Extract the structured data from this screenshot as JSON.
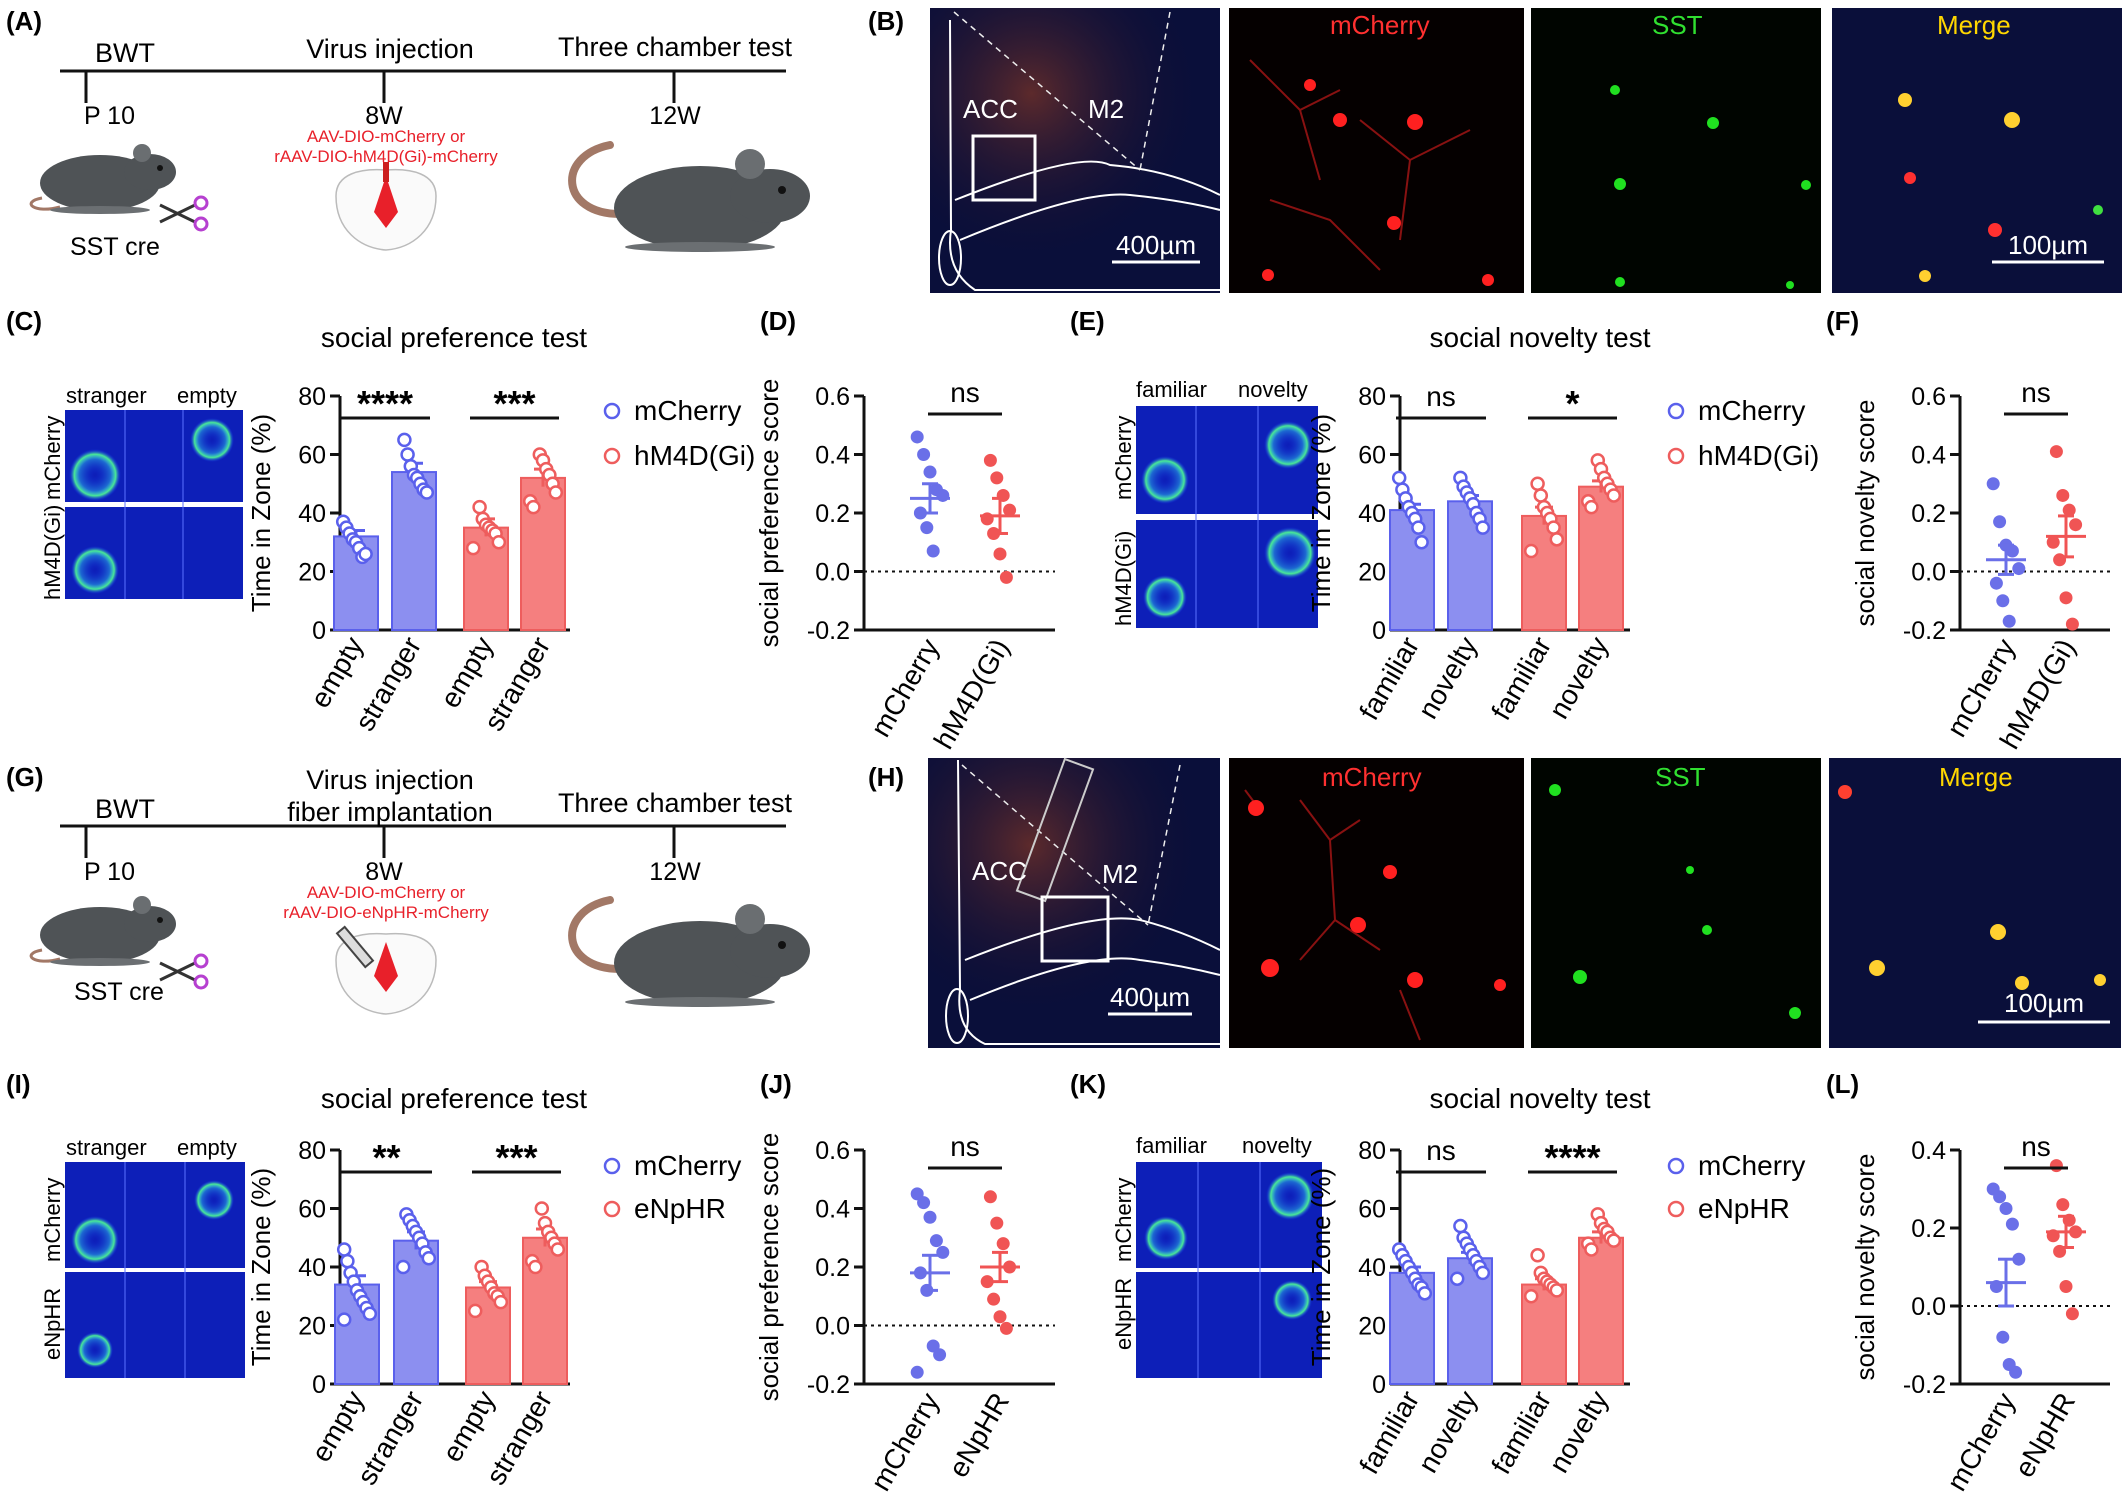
{
  "colors": {
    "blue_fill": "#8c8ff0",
    "blue": "#5a60ec",
    "blue_point": "#6a6fe8",
    "red_fill": "#f57f7f",
    "red": "#ee5d5d",
    "red_point": "#f05454",
    "virus_red": "#e8202a",
    "mouse": "#4f5356",
    "tail": "#a27866"
  },
  "panels": {
    "A": "(A)",
    "B": "(B)",
    "C": "(C)",
    "D": "(D)",
    "E": "(E)",
    "F": "(F)",
    "G": "(G)",
    "H": "(H)",
    "I": "(I)",
    "J": "(J)",
    "K": "(K)",
    "L": "(L)"
  },
  "timeline_top": {
    "bwt": "BWT",
    "p10": "P 10",
    "stage2": "Virus injection",
    "w8": "8W",
    "stage3": "Three chamber test",
    "w12": "12W",
    "virus_line1": "AAV-DIO-mCherry or",
    "virus_line2": "rAAV-DIO-hM4D(Gi)-mCherry",
    "mouse_label": "SST cre"
  },
  "timeline_bottom": {
    "bwt": "BWT",
    "p10": "P 10",
    "stage2_line1": "Virus injection",
    "stage2_line2": "fiber implantation",
    "w8": "8W",
    "stage3": "Three chamber test",
    "w12": "12W",
    "virus_line1": "AAV-DIO-mCherry or",
    "virus_line2": "rAAV-DIO-eNpHR-mCherry",
    "mouse_label": "SST cre"
  },
  "micrographs_top": {
    "acc": "ACC",
    "m2": "M2",
    "scale1": "400µm",
    "ch1": "mCherry",
    "ch2": "SST",
    "ch3": "Merge",
    "scale2": "100µm"
  },
  "micrographs_bottom": {
    "acc": "ACC",
    "m2": "M2",
    "scale1": "400µm",
    "ch1": "mCherry",
    "ch2": "SST",
    "ch3": "Merge",
    "scale2": "100µm"
  },
  "heatmaps": {
    "C": {
      "left": "stranger",
      "right": "empty",
      "row1": "mCherry",
      "row2": "hM4D(Gi)"
    },
    "E": {
      "left": "familiar",
      "right": "novelty",
      "row1": "mCherry",
      "row2": "hM4D(Gi)"
    },
    "I": {
      "left": "stranger",
      "right": "empty",
      "row1": "mCherry",
      "row2": "eNpHR"
    },
    "K": {
      "left": "familiar",
      "right": "novelty",
      "row1": "mCherry",
      "row2": "eNpHR"
    }
  },
  "chart_data": [
    {
      "panel": "C",
      "type": "bar",
      "title": "social preference test",
      "ylabel": "Time in Zone (%)",
      "ylim": [
        0,
        80
      ],
      "yticks": [
        0,
        20,
        40,
        60,
        80
      ],
      "categories": [
        "empty",
        "stranger",
        "empty",
        "stranger"
      ],
      "groups": [
        "mCherry",
        "mCherry",
        "hM4D(Gi)",
        "hM4D(Gi)"
      ],
      "values": [
        32,
        54,
        35,
        52
      ],
      "sem": [
        2,
        3,
        3,
        3
      ],
      "points": [
        [
          37,
          35,
          33,
          31,
          30,
          28,
          25,
          26
        ],
        [
          65,
          60,
          56,
          53,
          52,
          50,
          48,
          47
        ],
        [
          42,
          38,
          36,
          35,
          34,
          33,
          30,
          28
        ],
        [
          60,
          58,
          55,
          53,
          50,
          47,
          44,
          42
        ]
      ],
      "legend": [
        "mCherry",
        "hM4D(Gi)"
      ],
      "significance": [
        {
          "label": "****"
        },
        {
          "label": "***"
        }
      ]
    },
    {
      "panel": "D",
      "type": "scatter",
      "ylabel": "social preference score",
      "ylim": [
        -0.2,
        0.6
      ],
      "yticks": [
        "-0.2",
        "0.0",
        "0.2",
        "0.4",
        "0.6"
      ],
      "categories": [
        "mCherry",
        "hM4D(Gi)"
      ],
      "means": [
        0.25,
        0.19
      ],
      "sem": [
        0.05,
        0.06
      ],
      "points": [
        [
          0.46,
          0.4,
          0.34,
          0.28,
          0.26,
          0.2,
          0.15,
          0.07
        ],
        [
          0.38,
          0.32,
          0.26,
          0.21,
          0.18,
          0.13,
          0.06,
          -0.02
        ]
      ],
      "significance": [
        {
          "label": "ns"
        }
      ]
    },
    {
      "panel": "E",
      "type": "bar",
      "title": "social novelty test",
      "ylabel": "Time in Zone (%)",
      "ylim": [
        0,
        80
      ],
      "yticks": [
        0,
        20,
        40,
        60,
        80
      ],
      "categories": [
        "familiar",
        "novelty",
        "familiar",
        "novelty"
      ],
      "groups": [
        "mCherry",
        "mCherry",
        "hM4D(Gi)",
        "hM4D(Gi)"
      ],
      "values": [
        41,
        44,
        39,
        49
      ],
      "sem": [
        2,
        2,
        3,
        2
      ],
      "points": [
        [
          52,
          48,
          45,
          42,
          40,
          38,
          35,
          30
        ],
        [
          52,
          49,
          47,
          45,
          43,
          40,
          38,
          35
        ],
        [
          50,
          46,
          42,
          40,
          38,
          35,
          31,
          27
        ],
        [
          58,
          55,
          52,
          50,
          48,
          46,
          44,
          42
        ]
      ],
      "legend": [
        "mCherry",
        "hM4D(Gi)"
      ],
      "significance": [
        {
          "label": "ns"
        },
        {
          "label": "*"
        }
      ]
    },
    {
      "panel": "F",
      "type": "scatter",
      "ylabel": "social novelty score",
      "ylim": [
        -0.2,
        0.6
      ],
      "yticks": [
        "-0.2",
        "0.0",
        "0.2",
        "0.4",
        "0.6"
      ],
      "categories": [
        "mCherry",
        "hM4D(Gi)"
      ],
      "means": [
        0.04,
        0.12
      ],
      "sem": [
        0.05,
        0.07
      ],
      "points": [
        [
          0.3,
          0.17,
          0.09,
          0.07,
          0.01,
          -0.04,
          -0.1,
          -0.17
        ],
        [
          0.41,
          0.26,
          0.21,
          0.16,
          0.1,
          0.04,
          -0.09,
          -0.18
        ]
      ],
      "significance": [
        {
          "label": "ns"
        }
      ]
    },
    {
      "panel": "I",
      "type": "bar",
      "title": "social preference test",
      "ylabel": "Time in Zone (%)",
      "ylim": [
        0,
        80
      ],
      "yticks": [
        0,
        20,
        40,
        60,
        80
      ],
      "categories": [
        "empty",
        "stranger",
        "empty",
        "stranger"
      ],
      "groups": [
        "mCherry",
        "mCherry",
        "eNpHR",
        "eNpHR"
      ],
      "values": [
        34,
        49,
        33,
        50
      ],
      "sem": [
        3,
        3,
        2,
        3
      ],
      "points": [
        [
          46,
          42,
          38,
          35,
          32,
          30,
          28,
          26,
          24,
          22
        ],
        [
          58,
          56,
          54,
          52,
          50,
          48,
          45,
          43,
          40
        ],
        [
          40,
          37,
          35,
          33,
          31,
          30,
          28,
          25
        ],
        [
          60,
          55,
          52,
          50,
          48,
          46,
          42,
          40
        ]
      ],
      "legend": [
        "mCherry",
        "eNpHR"
      ],
      "significance": [
        {
          "label": "**"
        },
        {
          "label": "***"
        }
      ]
    },
    {
      "panel": "J",
      "type": "scatter",
      "ylabel": "social preference score",
      "ylim": [
        -0.2,
        0.6
      ],
      "yticks": [
        "-0.2",
        "0.0",
        "0.2",
        "0.4",
        "0.6"
      ],
      "categories": [
        "mCherry",
        "eNpHR"
      ],
      "means": [
        0.18,
        0.2
      ],
      "sem": [
        0.06,
        0.05
      ],
      "points": [
        [
          0.45,
          0.42,
          0.37,
          0.29,
          0.25,
          0.18,
          0.12,
          -0.07,
          -0.1,
          -0.16
        ],
        [
          0.44,
          0.35,
          0.28,
          0.2,
          0.15,
          0.09,
          0.03,
          -0.01
        ]
      ],
      "significance": [
        {
          "label": "ns"
        }
      ]
    },
    {
      "panel": "K",
      "type": "bar",
      "title": "social novelty test",
      "ylabel": "Time in Zone (%)",
      "ylim": [
        0,
        80
      ],
      "yticks": [
        0,
        20,
        40,
        60,
        80
      ],
      "categories": [
        "familiar",
        "novelty",
        "familiar",
        "novelty"
      ],
      "groups": [
        "mCherry",
        "mCherry",
        "eNpHR",
        "eNpHR"
      ],
      "values": [
        38,
        43,
        34,
        50
      ],
      "sem": [
        2,
        2,
        2,
        2
      ],
      "points": [
        [
          46,
          44,
          42,
          40,
          38,
          36,
          34,
          33,
          31
        ],
        [
          54,
          50,
          48,
          46,
          44,
          42,
          40,
          38,
          36
        ],
        [
          44,
          38,
          36,
          35,
          34,
          33,
          32,
          30
        ],
        [
          58,
          55,
          53,
          52,
          50,
          49,
          48,
          46
        ]
      ],
      "legend": [
        "mCherry",
        "eNpHR"
      ],
      "significance": [
        {
          "label": "ns"
        },
        {
          "label": "****"
        }
      ]
    },
    {
      "panel": "L",
      "type": "scatter",
      "ylabel": "social novelty score",
      "ylim": [
        -0.2,
        0.4
      ],
      "yticks": [
        "-0.2",
        "0.0",
        "0.2",
        "0.4"
      ],
      "categories": [
        "mCherry",
        "eNpHR"
      ],
      "means": [
        0.06,
        0.19
      ],
      "sem": [
        0.06,
        0.04
      ],
      "points": [
        [
          0.3,
          0.28,
          0.25,
          0.21,
          0.12,
          0.05,
          -0.08,
          -0.15,
          -0.17
        ],
        [
          0.36,
          0.26,
          0.22,
          0.19,
          0.18,
          0.14,
          0.05,
          -0.02
        ]
      ],
      "significance": [
        {
          "label": "ns"
        }
      ]
    }
  ]
}
